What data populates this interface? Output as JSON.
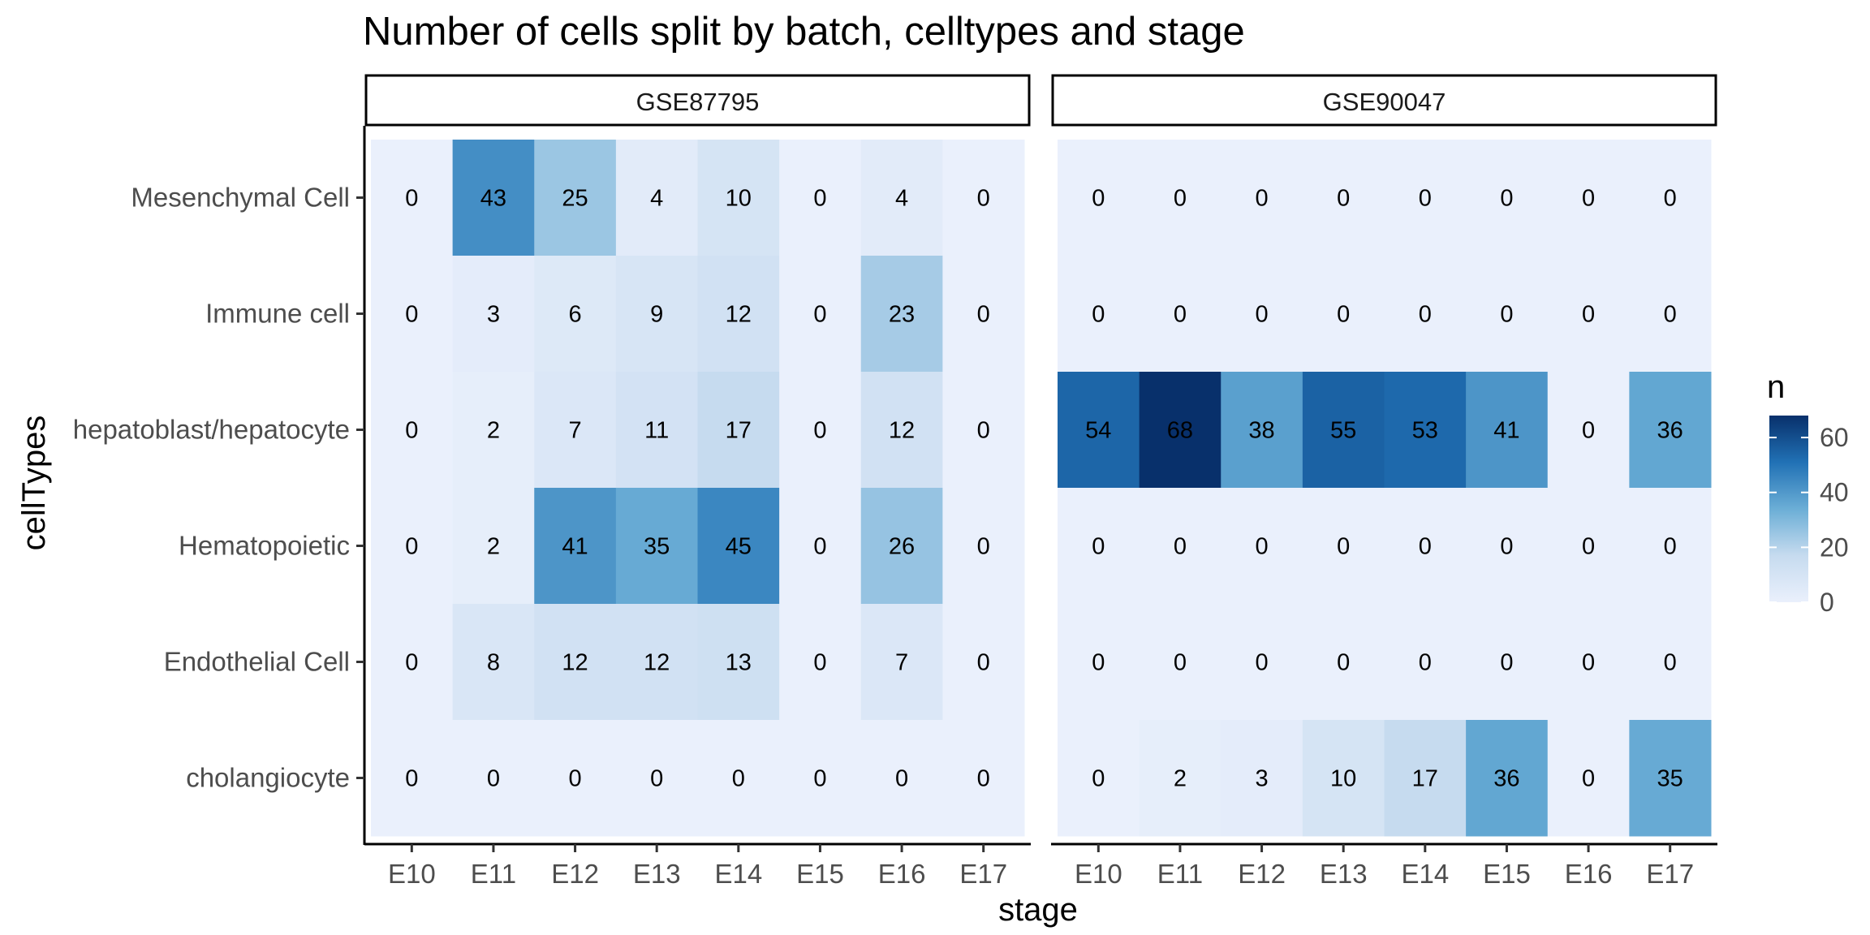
{
  "chart_data": {
    "type": "heatmap",
    "title": "Number of cells split by batch, celltypes and stage",
    "xlabel": "stage",
    "ylabel": "cellTypes",
    "x_categories": [
      "E10",
      "E11",
      "E12",
      "E13",
      "E14",
      "E15",
      "E16",
      "E17"
    ],
    "y_categories": [
      "Mesenchymal Cell",
      "Immune cell",
      "hepatoblast/hepatocyte",
      "Hematopoietic",
      "Endothelial Cell",
      "cholangiocyte"
    ],
    "facets": [
      {
        "name": "GSE87795",
        "values": [
          [
            0,
            43,
            25,
            4,
            10,
            0,
            4,
            0
          ],
          [
            0,
            3,
            6,
            9,
            12,
            0,
            23,
            0
          ],
          [
            0,
            2,
            7,
            11,
            17,
            0,
            12,
            0
          ],
          [
            0,
            2,
            41,
            35,
            45,
            0,
            26,
            0
          ],
          [
            0,
            8,
            12,
            12,
            13,
            0,
            7,
            0
          ],
          [
            0,
            0,
            0,
            0,
            0,
            0,
            0,
            0
          ]
        ]
      },
      {
        "name": "GSE90047",
        "values": [
          [
            0,
            0,
            0,
            0,
            0,
            0,
            0,
            0
          ],
          [
            0,
            0,
            0,
            0,
            0,
            0,
            0,
            0
          ],
          [
            54,
            68,
            38,
            55,
            53,
            41,
            0,
            36
          ],
          [
            0,
            0,
            0,
            0,
            0,
            0,
            0,
            0
          ],
          [
            0,
            0,
            0,
            0,
            0,
            0,
            0,
            0
          ],
          [
            0,
            2,
            3,
            10,
            17,
            36,
            0,
            35
          ]
        ]
      }
    ],
    "legend": {
      "title": "n",
      "ticks": [
        0,
        20,
        40,
        60
      ],
      "range": [
        0,
        68
      ],
      "placement": "right"
    },
    "colors": {
      "low": "#eaf0fc",
      "high": "#08306b",
      "stops": [
        "#eaf0fc",
        "#c6dbef",
        "#6baed6",
        "#2171b5",
        "#08306b"
      ]
    }
  }
}
